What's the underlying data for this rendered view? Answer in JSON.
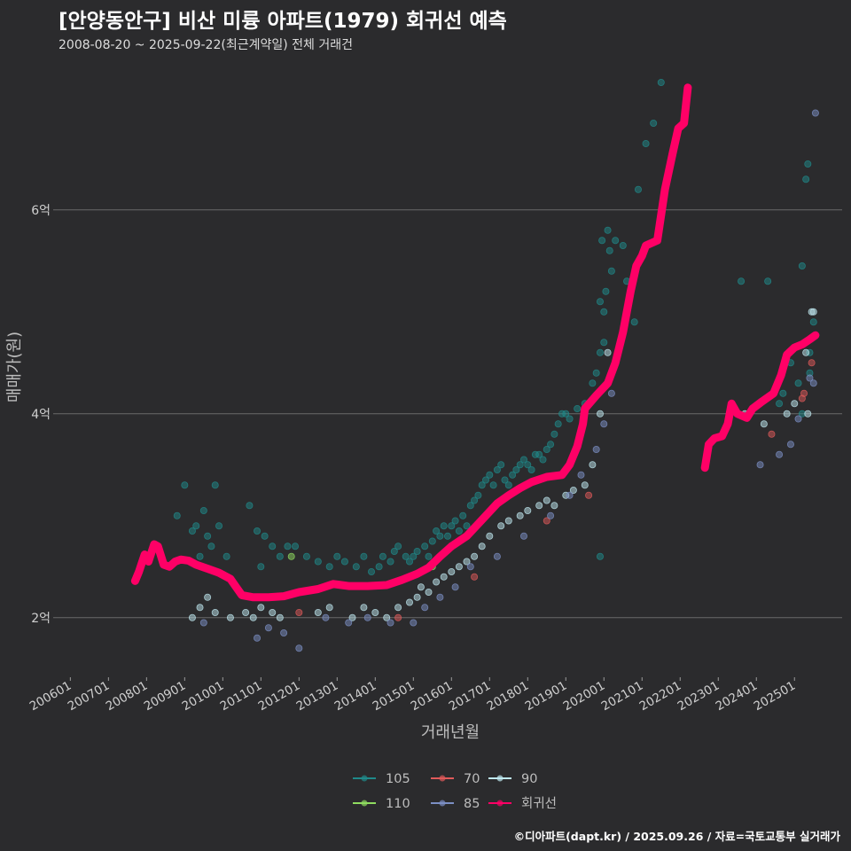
{
  "header": {
    "title": "[안양동안구] 비산 미륭 아파트(1979) 회귀선 예측",
    "subtitle": "2008-08-20 ~ 2025-09-22(최근계약일) 전체 거래건"
  },
  "footer": {
    "credit": "©디아파트(dapt.kr) / 2025.09.26 / 자료=국토교통부 실거래가"
  },
  "chart_data": {
    "type": "scatter",
    "xlabel": "거래년월",
    "ylabel": "매매가(원)",
    "x_ticks": [
      "200601",
      "200701",
      "200801",
      "200901",
      "201001",
      "201101",
      "201201",
      "201301",
      "201401",
      "201501",
      "201601",
      "201701",
      "201801",
      "201901",
      "202001",
      "202101",
      "202201",
      "202301",
      "202401",
      "202501"
    ],
    "y_ticks": [
      {
        "value": 2,
        "label": "2억"
      },
      {
        "value": 4,
        "label": "4억"
      },
      {
        "value": 6,
        "label": "6억"
      }
    ],
    "xlim": [
      2005.55,
      2026.25
    ],
    "ylim": [
      1.45,
      7.45
    ],
    "grid": "horizontal",
    "legend_position": "bottom",
    "legend": [
      {
        "name": "105",
        "color": "#1f8a8a"
      },
      {
        "name": "70",
        "color": "#e05a5a"
      },
      {
        "name": "90",
        "color": "#bfe8f0"
      },
      {
        "name": "110",
        "color": "#8fdc60"
      },
      {
        "name": "85",
        "color": "#7c8fc4"
      },
      {
        "name": "회귀선",
        "color": "#ff0066"
      }
    ],
    "series": [
      {
        "name": "105",
        "color": "#1f8a8a",
        "points": [
          [
            2008.8,
            3.0
          ],
          [
            2009.0,
            3.3
          ],
          [
            2009.2,
            2.85
          ],
          [
            2009.3,
            2.9
          ],
          [
            2009.5,
            3.05
          ],
          [
            2009.6,
            2.8
          ],
          [
            2009.8,
            3.3
          ],
          [
            2009.9,
            2.9
          ],
          [
            2010.1,
            2.6
          ],
          [
            2009.4,
            2.6
          ],
          [
            2009.7,
            2.7
          ],
          [
            2010.7,
            3.1
          ],
          [
            2010.9,
            2.85
          ],
          [
            2011.1,
            2.8
          ],
          [
            2011.3,
            2.7
          ],
          [
            2011.5,
            2.6
          ],
          [
            2011.7,
            2.7
          ],
          [
            2011.9,
            2.7
          ],
          [
            2011.0,
            2.5
          ],
          [
            2012.2,
            2.6
          ],
          [
            2012.5,
            2.55
          ],
          [
            2012.8,
            2.5
          ],
          [
            2013.0,
            2.6
          ],
          [
            2013.2,
            2.55
          ],
          [
            2013.5,
            2.5
          ],
          [
            2013.7,
            2.6
          ],
          [
            2013.9,
            2.45
          ],
          [
            2014.1,
            2.5
          ],
          [
            2014.2,
            2.6
          ],
          [
            2014.4,
            2.55
          ],
          [
            2014.5,
            2.65
          ],
          [
            2014.6,
            2.7
          ],
          [
            2014.8,
            2.6
          ],
          [
            2014.9,
            2.55
          ],
          [
            2015.0,
            2.6
          ],
          [
            2015.1,
            2.65
          ],
          [
            2015.3,
            2.7
          ],
          [
            2015.4,
            2.6
          ],
          [
            2015.5,
            2.75
          ],
          [
            2015.6,
            2.85
          ],
          [
            2015.7,
            2.8
          ],
          [
            2015.8,
            2.9
          ],
          [
            2015.9,
            2.8
          ],
          [
            2016.0,
            2.9
          ],
          [
            2016.1,
            2.95
          ],
          [
            2016.2,
            2.85
          ],
          [
            2016.3,
            3.0
          ],
          [
            2016.4,
            2.9
          ],
          [
            2016.5,
            3.1
          ],
          [
            2016.6,
            3.15
          ],
          [
            2016.7,
            3.2
          ],
          [
            2016.8,
            3.3
          ],
          [
            2016.9,
            3.35
          ],
          [
            2017.0,
            3.4
          ],
          [
            2017.1,
            3.3
          ],
          [
            2017.2,
            3.45
          ],
          [
            2017.3,
            3.5
          ],
          [
            2017.4,
            3.35
          ],
          [
            2017.5,
            3.3
          ],
          [
            2017.6,
            3.4
          ],
          [
            2017.7,
            3.45
          ],
          [
            2017.8,
            3.5
          ],
          [
            2017.9,
            3.55
          ],
          [
            2018.0,
            3.5
          ],
          [
            2018.1,
            3.45
          ],
          [
            2018.2,
            3.6
          ],
          [
            2018.3,
            3.6
          ],
          [
            2018.4,
            3.55
          ],
          [
            2018.5,
            3.65
          ],
          [
            2018.6,
            3.7
          ],
          [
            2018.7,
            3.8
          ],
          [
            2018.8,
            3.9
          ],
          [
            2018.9,
            4.0
          ],
          [
            2019.0,
            4.0
          ],
          [
            2019.1,
            3.95
          ],
          [
            2019.3,
            4.05
          ],
          [
            2019.5,
            4.1
          ],
          [
            2019.7,
            4.3
          ],
          [
            2019.8,
            4.4
          ],
          [
            2019.9,
            4.6
          ],
          [
            2020.0,
            5.0
          ],
          [
            2020.05,
            5.2
          ],
          [
            2020.1,
            5.8
          ],
          [
            2020.15,
            5.6
          ],
          [
            2020.2,
            5.4
          ],
          [
            2020.3,
            5.7
          ],
          [
            2020.5,
            5.65
          ],
          [
            2019.9,
            5.1
          ],
          [
            2020.0,
            4.7
          ],
          [
            2020.6,
            5.3
          ],
          [
            2020.9,
            6.2
          ],
          [
            2021.1,
            6.65
          ],
          [
            2021.3,
            6.85
          ],
          [
            2021.5,
            7.25
          ],
          [
            2019.95,
            5.7
          ],
          [
            2020.8,
            4.9
          ],
          [
            2019.9,
            2.6
          ],
          [
            2023.6,
            5.3
          ],
          [
            2024.3,
            5.3
          ],
          [
            2024.6,
            4.1
          ],
          [
            2024.7,
            4.2
          ],
          [
            2024.9,
            4.5
          ],
          [
            2025.1,
            4.3
          ],
          [
            2025.2,
            5.45
          ],
          [
            2025.3,
            6.3
          ],
          [
            2025.35,
            6.45
          ],
          [
            2025.4,
            4.6
          ],
          [
            2025.5,
            4.9
          ],
          [
            2025.2,
            4.0
          ],
          [
            2025.4,
            4.4
          ]
        ]
      },
      {
        "name": "70",
        "color": "#e05a5a",
        "points": [
          [
            2014.6,
            2.0
          ],
          [
            2016.6,
            2.4
          ],
          [
            2018.5,
            2.95
          ],
          [
            2019.6,
            3.2
          ],
          [
            2024.4,
            3.8
          ],
          [
            2025.2,
            4.15
          ],
          [
            2025.25,
            4.2
          ],
          [
            2025.45,
            4.5
          ],
          [
            2012.0,
            2.05
          ]
        ]
      },
      {
        "name": "90",
        "color": "#bfe8f0",
        "points": [
          [
            2009.2,
            2.0
          ],
          [
            2009.4,
            2.1
          ],
          [
            2009.6,
            2.2
          ],
          [
            2009.8,
            2.05
          ],
          [
            2010.2,
            2.0
          ],
          [
            2010.6,
            2.05
          ],
          [
            2010.8,
            2.0
          ],
          [
            2011.0,
            2.1
          ],
          [
            2011.3,
            2.05
          ],
          [
            2011.5,
            2.0
          ],
          [
            2012.5,
            2.05
          ],
          [
            2012.8,
            2.1
          ],
          [
            2013.4,
            2.0
          ],
          [
            2013.7,
            2.1
          ],
          [
            2014.0,
            2.05
          ],
          [
            2014.3,
            2.0
          ],
          [
            2014.6,
            2.1
          ],
          [
            2014.9,
            2.15
          ],
          [
            2015.1,
            2.2
          ],
          [
            2015.2,
            2.3
          ],
          [
            2015.4,
            2.25
          ],
          [
            2015.6,
            2.35
          ],
          [
            2015.8,
            2.4
          ],
          [
            2016.0,
            2.45
          ],
          [
            2016.2,
            2.5
          ],
          [
            2016.4,
            2.55
          ],
          [
            2016.6,
            2.6
          ],
          [
            2016.8,
            2.7
          ],
          [
            2017.0,
            2.8
          ],
          [
            2017.3,
            2.9
          ],
          [
            2017.5,
            2.95
          ],
          [
            2017.8,
            3.0
          ],
          [
            2018.0,
            3.05
          ],
          [
            2018.3,
            3.1
          ],
          [
            2018.5,
            3.15
          ],
          [
            2018.7,
            3.1
          ],
          [
            2019.0,
            3.2
          ],
          [
            2019.2,
            3.25
          ],
          [
            2019.5,
            3.3
          ],
          [
            2019.7,
            3.5
          ],
          [
            2019.9,
            4.0
          ],
          [
            2020.1,
            4.6
          ],
          [
            2023.7,
            4.0
          ],
          [
            2024.2,
            3.9
          ],
          [
            2024.8,
            4.0
          ],
          [
            2025.0,
            4.1
          ],
          [
            2025.3,
            4.6
          ],
          [
            2025.45,
            5.0
          ],
          [
            2025.5,
            5.0
          ],
          [
            2025.35,
            4.0
          ]
        ]
      },
      {
        "name": "110",
        "color": "#8fdc60",
        "points": [
          [
            2011.8,
            2.6
          ],
          [
            2015.5,
            2.5
          ]
        ]
      },
      {
        "name": "85",
        "color": "#7c8fc4",
        "points": [
          [
            2009.5,
            1.95
          ],
          [
            2010.9,
            1.8
          ],
          [
            2011.2,
            1.9
          ],
          [
            2011.6,
            1.85
          ],
          [
            2012.0,
            1.7
          ],
          [
            2012.7,
            2.0
          ],
          [
            2013.3,
            1.95
          ],
          [
            2013.8,
            2.0
          ],
          [
            2014.4,
            1.95
          ],
          [
            2015.0,
            1.95
          ],
          [
            2015.3,
            2.1
          ],
          [
            2015.7,
            2.2
          ],
          [
            2016.1,
            2.3
          ],
          [
            2016.5,
            2.5
          ],
          [
            2017.2,
            2.6
          ],
          [
            2017.9,
            2.8
          ],
          [
            2018.6,
            3.0
          ],
          [
            2019.1,
            3.2
          ],
          [
            2019.4,
            3.4
          ],
          [
            2019.8,
            3.65
          ],
          [
            2020.0,
            3.9
          ],
          [
            2020.2,
            4.2
          ],
          [
            2024.1,
            3.5
          ],
          [
            2024.6,
            3.6
          ],
          [
            2024.9,
            3.7
          ],
          [
            2025.4,
            4.35
          ],
          [
            2025.5,
            4.3
          ],
          [
            2025.55,
            6.95
          ],
          [
            2025.1,
            3.95
          ]
        ]
      },
      {
        "name": "회귀선",
        "color": "#ff0066",
        "line": true,
        "segments": [
          [
            [
              2007.7,
              2.36
            ],
            [
              2007.8,
              2.45
            ],
            [
              2007.95,
              2.62
            ],
            [
              2008.05,
              2.55
            ],
            [
              2008.2,
              2.72
            ],
            [
              2008.3,
              2.7
            ],
            [
              2008.45,
              2.52
            ],
            [
              2008.6,
              2.5
            ],
            [
              2008.75,
              2.55
            ],
            [
              2008.9,
              2.57
            ],
            [
              2009.1,
              2.56
            ],
            [
              2009.3,
              2.52
            ],
            [
              2009.6,
              2.48
            ],
            [
              2009.9,
              2.44
            ],
            [
              2010.2,
              2.38
            ],
            [
              2010.35,
              2.3
            ],
            [
              2010.5,
              2.22
            ],
            [
              2010.8,
              2.2
            ],
            [
              2011.2,
              2.2
            ],
            [
              2011.6,
              2.21
            ],
            [
              2012.0,
              2.25
            ],
            [
              2012.5,
              2.28
            ],
            [
              2012.9,
              2.33
            ],
            [
              2013.3,
              2.31
            ],
            [
              2013.8,
              2.31
            ],
            [
              2014.3,
              2.32
            ],
            [
              2014.7,
              2.37
            ],
            [
              2015.1,
              2.43
            ],
            [
              2015.4,
              2.49
            ],
            [
              2015.7,
              2.6
            ],
            [
              2016.0,
              2.7
            ],
            [
              2016.4,
              2.8
            ],
            [
              2016.8,
              2.96
            ],
            [
              2017.2,
              3.12
            ],
            [
              2017.5,
              3.2
            ],
            [
              2017.8,
              3.27
            ],
            [
              2018.1,
              3.33
            ],
            [
              2018.5,
              3.38
            ],
            [
              2018.9,
              3.4
            ],
            [
              2019.1,
              3.5
            ],
            [
              2019.3,
              3.68
            ],
            [
              2019.45,
              3.9
            ],
            [
              2019.5,
              4.05
            ],
            [
              2019.8,
              4.18
            ],
            [
              2020.1,
              4.3
            ],
            [
              2020.3,
              4.5
            ],
            [
              2020.5,
              4.8
            ],
            [
              2020.7,
              5.2
            ],
            [
              2020.85,
              5.45
            ],
            [
              2021.0,
              5.55
            ],
            [
              2021.1,
              5.65
            ],
            [
              2021.4,
              5.7
            ],
            [
              2021.6,
              6.2
            ],
            [
              2021.8,
              6.55
            ],
            [
              2021.95,
              6.8
            ],
            [
              2022.1,
              6.85
            ],
            [
              2022.2,
              7.2
            ]
          ],
          [
            [
              2022.65,
              3.47
            ],
            [
              2022.75,
              3.7
            ],
            [
              2022.9,
              3.76
            ],
            [
              2023.1,
              3.78
            ],
            [
              2023.25,
              3.9
            ],
            [
              2023.35,
              4.1
            ],
            [
              2023.5,
              4.0
            ],
            [
              2023.75,
              3.96
            ],
            [
              2023.9,
              4.05
            ],
            [
              2024.15,
              4.12
            ],
            [
              2024.45,
              4.2
            ],
            [
              2024.65,
              4.38
            ],
            [
              2024.8,
              4.58
            ],
            [
              2025.0,
              4.65
            ],
            [
              2025.2,
              4.68
            ],
            [
              2025.4,
              4.73
            ],
            [
              2025.55,
              4.77
            ]
          ]
        ]
      }
    ]
  }
}
